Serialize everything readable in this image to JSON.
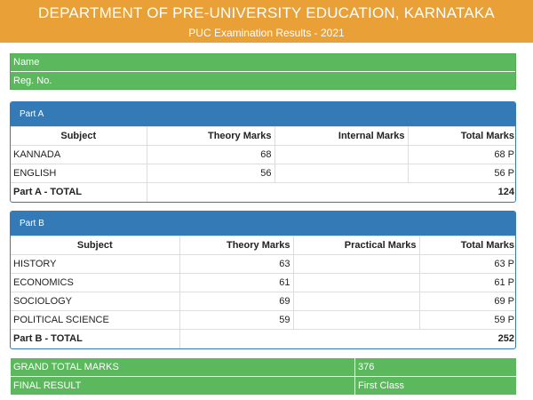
{
  "header": {
    "title": "DEPARTMENT OF PRE-UNIVERSITY EDUCATION, KARNATAKA",
    "subtitle": "PUC Examination Results - 2021"
  },
  "student": {
    "name_label": "Name",
    "regno_label": "Reg. No."
  },
  "part_a": {
    "heading": "Part A",
    "columns": [
      "Subject",
      "Theory Marks",
      "Internal Marks",
      "Total Marks"
    ],
    "rows": [
      {
        "subject": "KANNADA",
        "theory": "68",
        "other": "",
        "total": "68 P"
      },
      {
        "subject": "ENGLISH",
        "theory": "56",
        "other": "",
        "total": "56 P"
      }
    ],
    "total_label": "Part A - TOTAL",
    "total_value": "124"
  },
  "part_b": {
    "heading": "Part B",
    "columns": [
      "Subject",
      "Theory Marks",
      "Practical Marks",
      "Total Marks"
    ],
    "rows": [
      {
        "subject": "HISTORY",
        "theory": "63",
        "other": "",
        "total": "63 P"
      },
      {
        "subject": "ECONOMICS",
        "theory": "61",
        "other": "",
        "total": "61 P"
      },
      {
        "subject": "SOCIOLOGY",
        "theory": "69",
        "other": "",
        "total": "69 P"
      },
      {
        "subject": "POLITICAL SCIENCE",
        "theory": "59",
        "other": "",
        "total": "59 P"
      }
    ],
    "total_label": "Part B - TOTAL",
    "total_value": "252"
  },
  "summary": {
    "grand_total_label": "GRAND TOTAL MARKS",
    "grand_total_value": "376",
    "final_result_label": "FINAL RESULT",
    "final_result_value": "First Class"
  },
  "colors": {
    "header": "#e8a037",
    "green": "#5cb85c",
    "panel_blue": "#337ab7"
  }
}
